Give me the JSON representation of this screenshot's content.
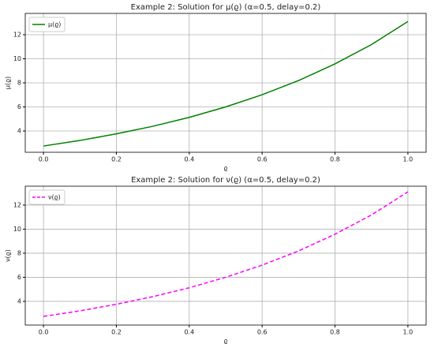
{
  "chart_data": [
    {
      "type": "line",
      "title": "Example 2: Solution for μ(ϱ) (α=0.5, delay=0.2)",
      "x_label": "ϱ",
      "y_label": "μ(ϱ)",
      "x": [
        0,
        0.1,
        0.2,
        0.3,
        0.4,
        0.5,
        0.6,
        0.7,
        0.8,
        0.9,
        1.0
      ],
      "series": [
        {
          "name": "μ(ϱ)",
          "color": "#008000",
          "linestyle": "solid",
          "values": [
            2.75,
            3.21,
            3.76,
            4.39,
            5.13,
            6.0,
            7.01,
            8.19,
            9.58,
            11.18,
            13.1
          ]
        }
      ],
      "xlim": [
        -0.05,
        1.05
      ],
      "xticks": [
        {
          "value": 0,
          "label": "0.0"
        },
        0.2,
        0.4,
        0.6,
        0.8,
        {
          "value": 1,
          "label": "1.0"
        }
      ],
      "ylim": [
        2.23,
        13.77
      ],
      "yticks": [
        4,
        6,
        8,
        10,
        12
      ],
      "grid": true,
      "legend": "upper left"
    },
    {
      "type": "line",
      "title": "Example 2: Solution for ν(ϱ) (α=0.5, delay=0.2)",
      "x_label": "ϱ",
      "y_label": "ν(ϱ)",
      "x": [
        0,
        0.1,
        0.2,
        0.3,
        0.4,
        0.5,
        0.6,
        0.7,
        0.8,
        0.9,
        1.0
      ],
      "series": [
        {
          "name": "ν(ϱ)",
          "color": "#ff00ff",
          "linestyle": "dashed",
          "values": [
            2.75,
            3.21,
            3.76,
            4.39,
            5.13,
            6.0,
            7.01,
            8.19,
            9.58,
            11.18,
            13.1
          ]
        }
      ],
      "xlim": [
        -0.05,
        1.05
      ],
      "xticks": [
        {
          "value": 0,
          "label": "0.0"
        },
        0.2,
        0.4,
        0.6,
        0.8,
        {
          "value": 1,
          "label": "1.0"
        }
      ],
      "ylim": [
        2.03,
        13.57
      ],
      "yticks": [
        4,
        6,
        8,
        10,
        12
      ],
      "grid": true,
      "legend": "upper left"
    }
  ]
}
